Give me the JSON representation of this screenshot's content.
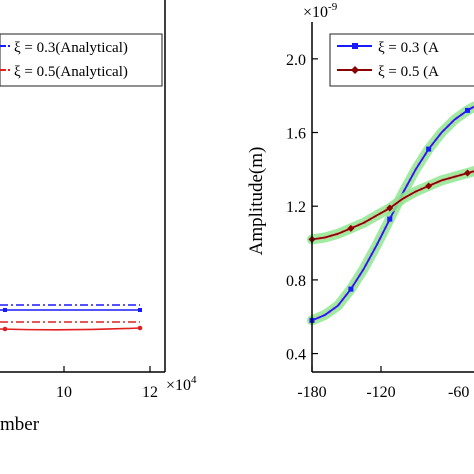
{
  "chart_data": [
    {
      "type": "line",
      "xlabel": "Number",
      "xlabel_visible_fragment": "mber",
      "x_multiplier_label": "×10",
      "x_multiplier_exp": "4",
      "x_ticks": [
        "10",
        "12"
      ],
      "legend": [
        {
          "label": "ξ = 0.3(Analytical)",
          "color": "#1a1aff",
          "style": "dash-dot"
        },
        {
          "label": "ξ = 0.5(Analytical)",
          "color": "#e02020",
          "style": "dash-dot"
        }
      ],
      "series": [
        {
          "color": "#1a1aff",
          "dashed_level": 1.0,
          "solid_level": 0.95
        },
        {
          "color": "#e02020",
          "dashed_level": 0.7,
          "solid_level": 0.58
        }
      ],
      "x_range_visible": [
        8,
        12
      ]
    },
    {
      "type": "line",
      "ylabel": "Amplitude(m)",
      "y_multiplier_label": "×10",
      "y_multiplier_exp": "-9",
      "ylim": [
        0.3,
        2.2
      ],
      "yticks": [
        "2.0",
        "1.6",
        "1.2",
        "0.8",
        "0.4"
      ],
      "xlim": [
        -180,
        -55
      ],
      "xticks": [
        "-180",
        "-120"
      ],
      "xtick_partial": "-60",
      "legend": [
        {
          "label": "ξ = 0.3 (A",
          "color": "#1a1aff"
        },
        {
          "label": "ξ = 0.5 (A",
          "color": "#8b0000"
        }
      ],
      "series": [
        {
          "name": "ξ = 0.3",
          "color": "#1a1aff",
          "x": [
            -180,
            -170,
            -160,
            -150,
            -140,
            -130,
            -120,
            -110,
            -100,
            -90,
            -80,
            -70,
            -60,
            -55
          ],
          "y": [
            0.58,
            0.61,
            0.66,
            0.75,
            0.86,
            0.99,
            1.13,
            1.27,
            1.4,
            1.51,
            1.6,
            1.67,
            1.72,
            1.74
          ]
        },
        {
          "name": "ξ = 0.5",
          "color": "#8b0000",
          "x": [
            -180,
            -170,
            -160,
            -150,
            -140,
            -130,
            -120,
            -110,
            -100,
            -90,
            -80,
            -70,
            -60,
            -55
          ],
          "y": [
            1.02,
            1.03,
            1.05,
            1.08,
            1.11,
            1.15,
            1.19,
            1.24,
            1.28,
            1.31,
            1.34,
            1.36,
            1.38,
            1.39
          ]
        }
      ]
    }
  ]
}
